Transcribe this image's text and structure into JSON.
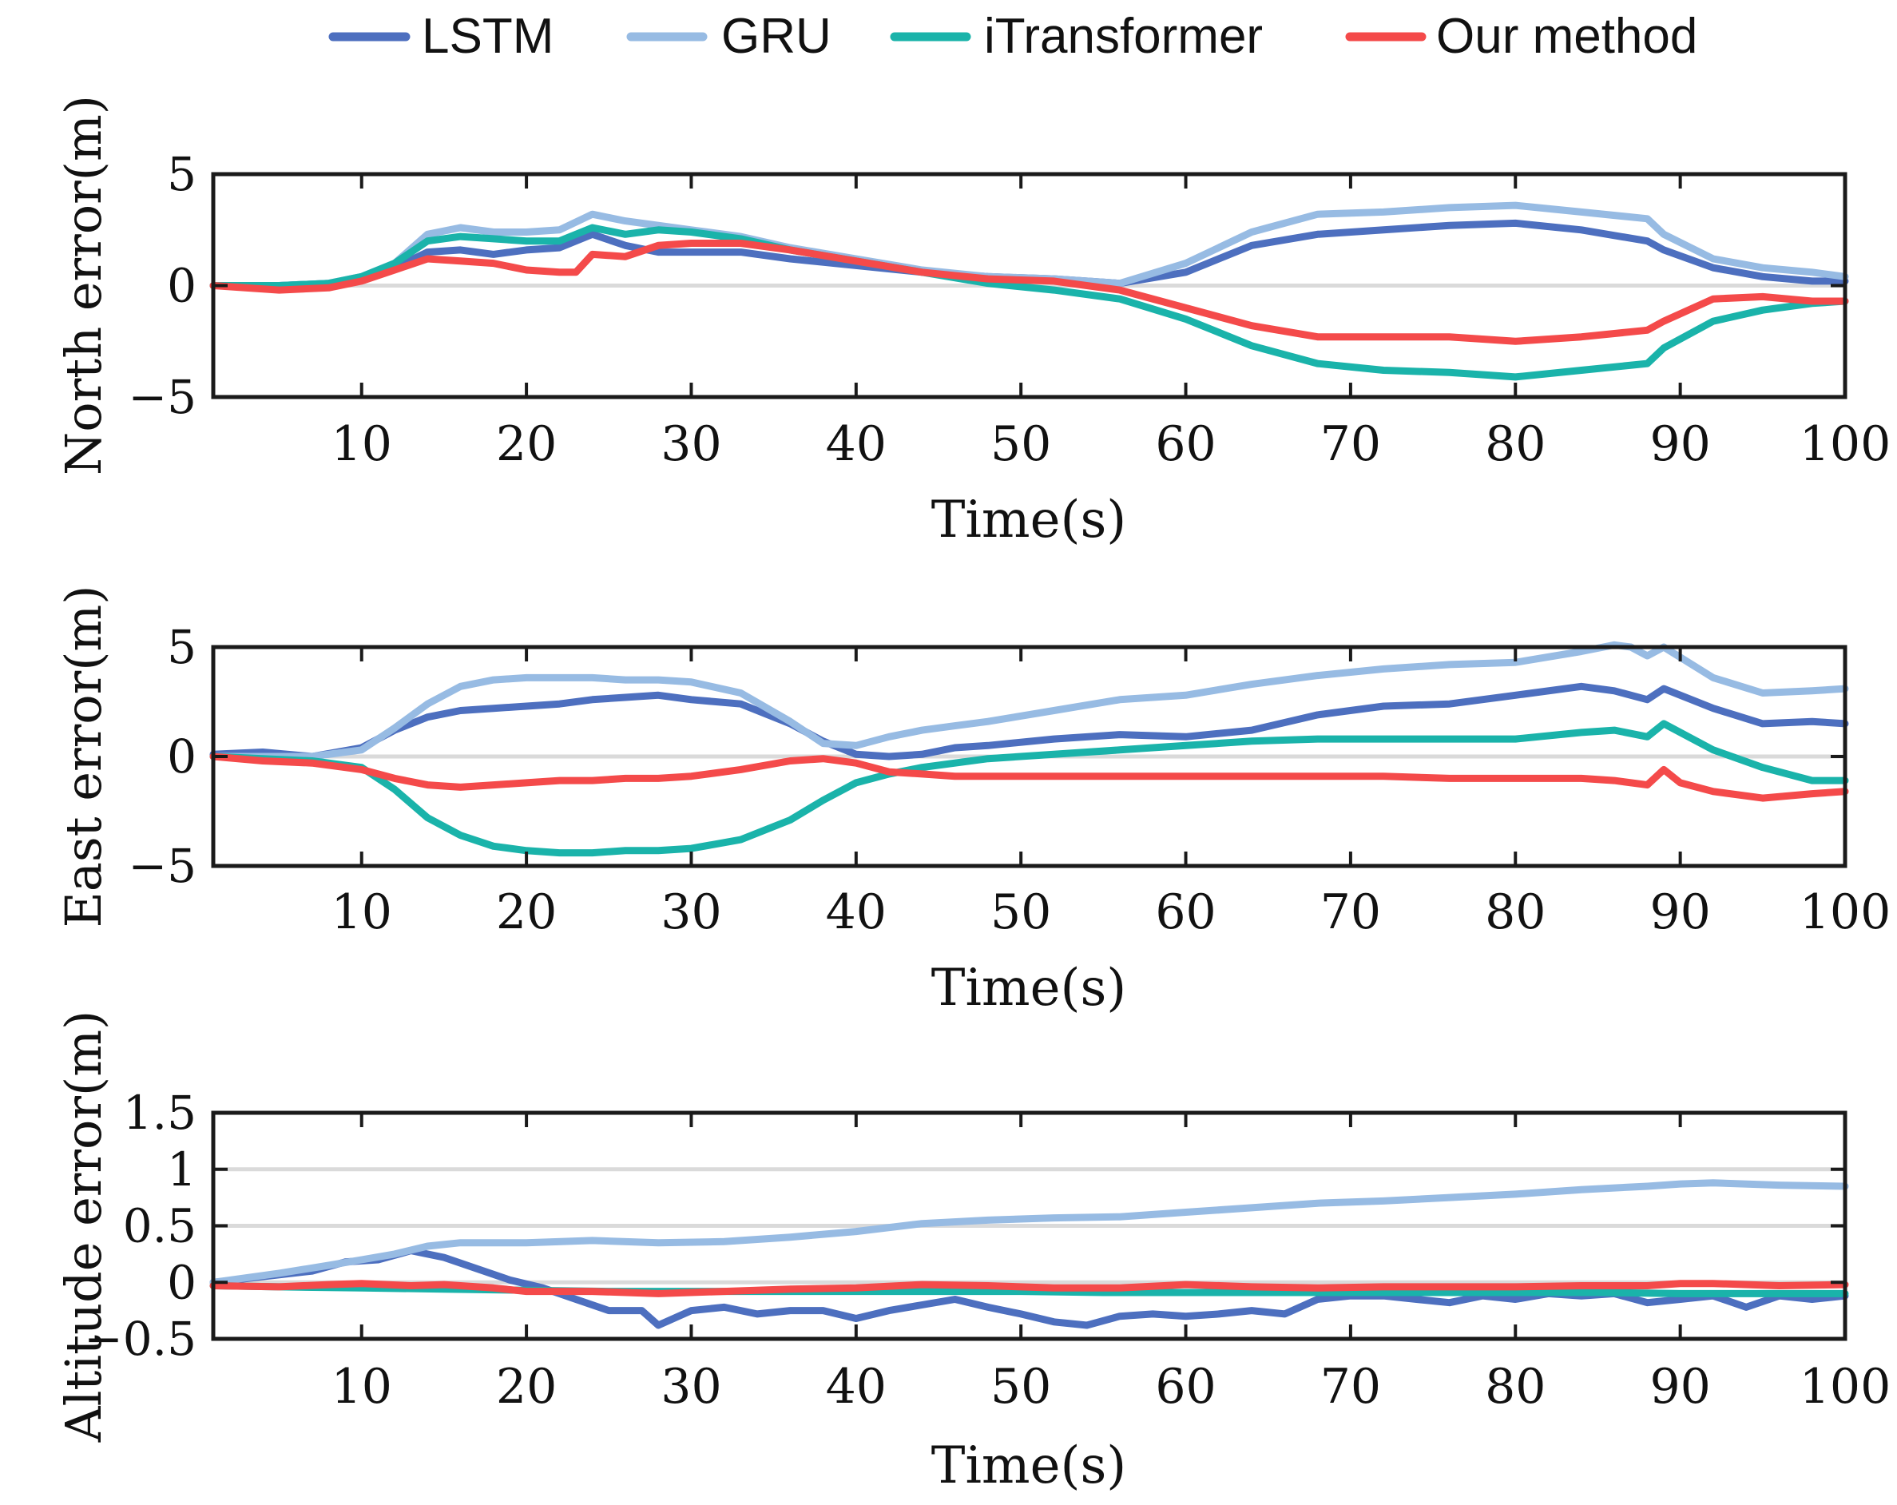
{
  "legend": [
    {
      "name": "LSTM",
      "color": "#4d6fbf"
    },
    {
      "name": "GRU",
      "color": "#97bbe3"
    },
    {
      "name": "iTransformer",
      "color": "#1ab3aa"
    },
    {
      "name": "Our method",
      "color": "#f44a4a"
    }
  ],
  "chart_data": [
    {
      "type": "line",
      "id": "north",
      "xlabel": "Time(s)",
      "ylabel": "North error(m)",
      "xlim": [
        1,
        100
      ],
      "ylim": [
        -5,
        5
      ],
      "xticks": [
        10,
        20,
        30,
        40,
        50,
        60,
        70,
        80,
        90,
        100
      ],
      "xtick_labels": [
        "10",
        "20",
        "30",
        "40",
        "50",
        "60",
        "70",
        "80",
        "90",
        "100"
      ],
      "yticks": [
        -5,
        0,
        5
      ],
      "ytick_labels": [
        "−5",
        "0",
        "5"
      ],
      "grid_y": [
        0
      ],
      "series": [
        {
          "name": "LSTM",
          "color": "#4d6fbf",
          "x": [
            1,
            5,
            8,
            10,
            12,
            14,
            16,
            18,
            20,
            22,
            24,
            26,
            28,
            30,
            33,
            36,
            40,
            44,
            48,
            52,
            56,
            60,
            64,
            68,
            72,
            76,
            80,
            84,
            88,
            89,
            92,
            95,
            98,
            100
          ],
          "y": [
            0,
            0,
            0.1,
            0.3,
            0.8,
            1.5,
            1.6,
            1.4,
            1.6,
            1.7,
            2.3,
            1.8,
            1.5,
            1.5,
            1.5,
            1.2,
            0.9,
            0.6,
            0.4,
            0.3,
            0.1,
            0.6,
            1.8,
            2.3,
            2.5,
            2.7,
            2.8,
            2.5,
            2.0,
            1.6,
            0.8,
            0.4,
            0.2,
            0.2
          ]
        },
        {
          "name": "GRU",
          "color": "#97bbe3",
          "x": [
            1,
            5,
            8,
            10,
            12,
            14,
            16,
            18,
            20,
            22,
            24,
            26,
            28,
            30,
            33,
            36,
            40,
            44,
            48,
            52,
            56,
            60,
            64,
            68,
            72,
            76,
            80,
            84,
            88,
            89,
            92,
            95,
            98,
            100
          ],
          "y": [
            0,
            0,
            0.1,
            0.4,
            1.0,
            2.3,
            2.6,
            2.4,
            2.4,
            2.5,
            3.2,
            2.9,
            2.7,
            2.5,
            2.2,
            1.7,
            1.2,
            0.7,
            0.4,
            0.3,
            0.1,
            1.0,
            2.4,
            3.2,
            3.3,
            3.5,
            3.6,
            3.3,
            3.0,
            2.3,
            1.2,
            0.8,
            0.6,
            0.4
          ]
        },
        {
          "name": "iTransformer",
          "color": "#1ab3aa",
          "x": [
            1,
            5,
            8,
            10,
            12,
            14,
            16,
            18,
            20,
            22,
            24,
            26,
            28,
            30,
            33,
            36,
            40,
            44,
            48,
            52,
            56,
            60,
            64,
            68,
            72,
            76,
            80,
            84,
            88,
            89,
            92,
            95,
            98,
            100
          ],
          "y": [
            0,
            0,
            0.1,
            0.4,
            1.0,
            2.0,
            2.2,
            2.1,
            2.0,
            2.0,
            2.6,
            2.3,
            2.5,
            2.4,
            2.1,
            1.6,
            1.1,
            0.6,
            0.1,
            -0.2,
            -0.6,
            -1.5,
            -2.7,
            -3.5,
            -3.8,
            -3.9,
            -4.1,
            -3.8,
            -3.5,
            -2.8,
            -1.6,
            -1.1,
            -0.8,
            -0.7
          ]
        },
        {
          "name": "Our method",
          "color": "#f44a4a",
          "x": [
            1,
            5,
            8,
            10,
            12,
            14,
            16,
            18,
            20,
            22,
            23,
            24,
            26,
            28,
            30,
            33,
            36,
            40,
            44,
            48,
            52,
            56,
            60,
            64,
            68,
            72,
            76,
            80,
            84,
            88,
            89,
            92,
            95,
            98,
            100
          ],
          "y": [
            0,
            -0.2,
            -0.1,
            0.2,
            0.7,
            1.2,
            1.1,
            1.0,
            0.7,
            0.6,
            0.6,
            1.4,
            1.3,
            1.8,
            1.9,
            1.9,
            1.6,
            1.1,
            0.6,
            0.3,
            0.2,
            -0.2,
            -1.0,
            -1.8,
            -2.3,
            -2.3,
            -2.3,
            -2.5,
            -2.3,
            -2.0,
            -1.6,
            -0.6,
            -0.5,
            -0.7,
            -0.7
          ]
        }
      ]
    },
    {
      "type": "line",
      "id": "east",
      "xlabel": "Time(s)",
      "ylabel": "East error(m)",
      "xlim": [
        1,
        100
      ],
      "ylim": [
        -5,
        5
      ],
      "xticks": [
        10,
        20,
        30,
        40,
        50,
        60,
        70,
        80,
        90,
        100
      ],
      "xtick_labels": [
        "10",
        "20",
        "30",
        "40",
        "50",
        "60",
        "70",
        "80",
        "90",
        "100"
      ],
      "yticks": [
        -5,
        0,
        5
      ],
      "ytick_labels": [
        "−5",
        "0",
        "5"
      ],
      "grid_y": [
        0
      ],
      "series": [
        {
          "name": "LSTM",
          "color": "#4d6fbf",
          "x": [
            1,
            4,
            7,
            10,
            12,
            14,
            16,
            18,
            20,
            22,
            24,
            26,
            28,
            30,
            33,
            36,
            38,
            40,
            42,
            44,
            46,
            48,
            52,
            56,
            60,
            64,
            68,
            72,
            76,
            80,
            84,
            86,
            88,
            89,
            92,
            95,
            98,
            100
          ],
          "y": [
            0.1,
            0.2,
            0,
            0.4,
            1.2,
            1.8,
            2.1,
            2.2,
            2.3,
            2.4,
            2.6,
            2.7,
            2.8,
            2.6,
            2.4,
            1.5,
            0.7,
            0.1,
            0.0,
            0.1,
            0.4,
            0.5,
            0.8,
            1.0,
            0.9,
            1.2,
            1.9,
            2.3,
            2.4,
            2.8,
            3.2,
            3.0,
            2.6,
            3.1,
            2.2,
            1.5,
            1.6,
            1.5
          ]
        },
        {
          "name": "GRU",
          "color": "#97bbe3",
          "x": [
            1,
            4,
            7,
            10,
            12,
            14,
            16,
            18,
            20,
            22,
            24,
            26,
            28,
            30,
            33,
            36,
            38,
            40,
            42,
            44,
            46,
            48,
            52,
            56,
            60,
            64,
            68,
            72,
            76,
            80,
            84,
            86,
            87,
            88,
            89,
            92,
            95,
            98,
            100
          ],
          "y": [
            0,
            0,
            0,
            0.3,
            1.3,
            2.4,
            3.2,
            3.5,
            3.6,
            3.6,
            3.6,
            3.5,
            3.5,
            3.4,
            2.9,
            1.6,
            0.6,
            0.5,
            0.9,
            1.2,
            1.4,
            1.6,
            2.1,
            2.6,
            2.8,
            3.3,
            3.7,
            4.0,
            4.2,
            4.3,
            4.8,
            5.1,
            5.0,
            4.6,
            5.0,
            3.6,
            2.9,
            3.0,
            3.1
          ]
        },
        {
          "name": "iTransformer",
          "color": "#1ab3aa",
          "x": [
            1,
            4,
            7,
            10,
            12,
            14,
            16,
            18,
            20,
            22,
            24,
            26,
            28,
            30,
            33,
            36,
            38,
            40,
            42,
            44,
            46,
            48,
            52,
            56,
            60,
            64,
            68,
            72,
            76,
            80,
            84,
            86,
            88,
            89,
            92,
            95,
            98,
            100
          ],
          "y": [
            0,
            -0.1,
            -0.2,
            -0.5,
            -1.5,
            -2.8,
            -3.6,
            -4.1,
            -4.3,
            -4.4,
            -4.4,
            -4.3,
            -4.3,
            -4.2,
            -3.8,
            -2.9,
            -2.0,
            -1.2,
            -0.8,
            -0.5,
            -0.3,
            -0.1,
            0.1,
            0.3,
            0.5,
            0.7,
            0.8,
            0.8,
            0.8,
            0.8,
            1.1,
            1.2,
            0.9,
            1.5,
            0.3,
            -0.5,
            -1.1,
            -1.1
          ]
        },
        {
          "name": "Our method",
          "color": "#f44a4a",
          "x": [
            1,
            4,
            7,
            10,
            12,
            14,
            16,
            18,
            20,
            22,
            24,
            26,
            28,
            30,
            33,
            36,
            38,
            40,
            42,
            44,
            46,
            48,
            52,
            56,
            60,
            64,
            68,
            72,
            76,
            80,
            84,
            86,
            88,
            89,
            90,
            92,
            95,
            98,
            100
          ],
          "y": [
            0,
            -0.2,
            -0.3,
            -0.6,
            -1.0,
            -1.3,
            -1.4,
            -1.3,
            -1.2,
            -1.1,
            -1.1,
            -1.0,
            -1.0,
            -0.9,
            -0.6,
            -0.2,
            -0.1,
            -0.3,
            -0.7,
            -0.8,
            -0.9,
            -0.9,
            -0.9,
            -0.9,
            -0.9,
            -0.9,
            -0.9,
            -0.9,
            -1.0,
            -1.0,
            -1.0,
            -1.1,
            -1.3,
            -0.6,
            -1.2,
            -1.6,
            -1.9,
            -1.7,
            -1.6
          ]
        }
      ]
    },
    {
      "type": "line",
      "id": "altitude",
      "xlabel": "Time(s)",
      "ylabel": "Altitude error(m)",
      "xlim": [
        1,
        100
      ],
      "ylim": [
        -0.5,
        1.5
      ],
      "xticks": [
        10,
        20,
        30,
        40,
        50,
        60,
        70,
        80,
        90,
        100
      ],
      "xtick_labels": [
        "10",
        "20",
        "30",
        "40",
        "50",
        "60",
        "70",
        "80",
        "90",
        "100"
      ],
      "yticks": [
        -0.5,
        0,
        0.5,
        1,
        1.5
      ],
      "ytick_labels": [
        "−0.5",
        "0",
        "0.5",
        "1",
        "1.5"
      ],
      "grid_y": [
        0,
        0.5,
        1
      ],
      "series": [
        {
          "name": "LSTM",
          "color": "#4d6fbf",
          "x": [
            1,
            4,
            7,
            9,
            11,
            13,
            15,
            17,
            19,
            21,
            23,
            25,
            27,
            28,
            30,
            32,
            34,
            36,
            38,
            40,
            42,
            44,
            46,
            48,
            50,
            52,
            54,
            56,
            58,
            60,
            62,
            64,
            66,
            68,
            70,
            72,
            74,
            76,
            78,
            80,
            82,
            84,
            86,
            88,
            90,
            92,
            94,
            96,
            98,
            100
          ],
          "y": [
            0,
            0.05,
            0.1,
            0.18,
            0.2,
            0.28,
            0.22,
            0.12,
            0.02,
            -0.05,
            -0.15,
            -0.25,
            -0.25,
            -0.38,
            -0.25,
            -0.22,
            -0.28,
            -0.25,
            -0.25,
            -0.32,
            -0.25,
            -0.2,
            -0.15,
            -0.22,
            -0.28,
            -0.35,
            -0.38,
            -0.3,
            -0.28,
            -0.3,
            -0.28,
            -0.25,
            -0.28,
            -0.15,
            -0.12,
            -0.12,
            -0.15,
            -0.18,
            -0.12,
            -0.15,
            -0.1,
            -0.12,
            -0.1,
            -0.18,
            -0.15,
            -0.12,
            -0.22,
            -0.12,
            -0.15,
            -0.12
          ]
        },
        {
          "name": "GRU",
          "color": "#97bbe3",
          "x": [
            1,
            5,
            8,
            10,
            12,
            14,
            16,
            20,
            24,
            28,
            32,
            36,
            40,
            44,
            48,
            52,
            56,
            60,
            64,
            68,
            72,
            76,
            80,
            84,
            88,
            90,
            92,
            96,
            100
          ],
          "y": [
            0,
            0.08,
            0.15,
            0.2,
            0.25,
            0.32,
            0.35,
            0.35,
            0.37,
            0.35,
            0.36,
            0.4,
            0.45,
            0.52,
            0.55,
            0.57,
            0.58,
            0.62,
            0.66,
            0.7,
            0.72,
            0.75,
            0.78,
            0.82,
            0.85,
            0.87,
            0.88,
            0.86,
            0.85
          ]
        },
        {
          "name": "iTransformer",
          "color": "#1ab3aa",
          "x": [
            1,
            5,
            10,
            15,
            20,
            25,
            30,
            35,
            40,
            45,
            50,
            55,
            60,
            65,
            70,
            75,
            80,
            85,
            90,
            95,
            100
          ],
          "y": [
            -0.03,
            -0.04,
            -0.05,
            -0.06,
            -0.07,
            -0.08,
            -0.08,
            -0.08,
            -0.08,
            -0.08,
            -0.08,
            -0.09,
            -0.09,
            -0.09,
            -0.09,
            -0.09,
            -0.09,
            -0.09,
            -0.1,
            -0.1,
            -0.1
          ]
        },
        {
          "name": "Our method",
          "color": "#f44a4a",
          "x": [
            1,
            5,
            8,
            10,
            13,
            15,
            18,
            20,
            24,
            28,
            32,
            36,
            40,
            44,
            48,
            52,
            56,
            60,
            64,
            68,
            72,
            76,
            80,
            84,
            88,
            90,
            92,
            96,
            100
          ],
          "y": [
            -0.03,
            -0.04,
            -0.02,
            -0.01,
            -0.03,
            -0.02,
            -0.05,
            -0.08,
            -0.08,
            -0.1,
            -0.08,
            -0.06,
            -0.05,
            -0.02,
            -0.03,
            -0.05,
            -0.05,
            -0.02,
            -0.04,
            -0.05,
            -0.04,
            -0.04,
            -0.04,
            -0.03,
            -0.03,
            -0.01,
            -0.01,
            -0.03,
            -0.02
          ]
        }
      ]
    }
  ]
}
